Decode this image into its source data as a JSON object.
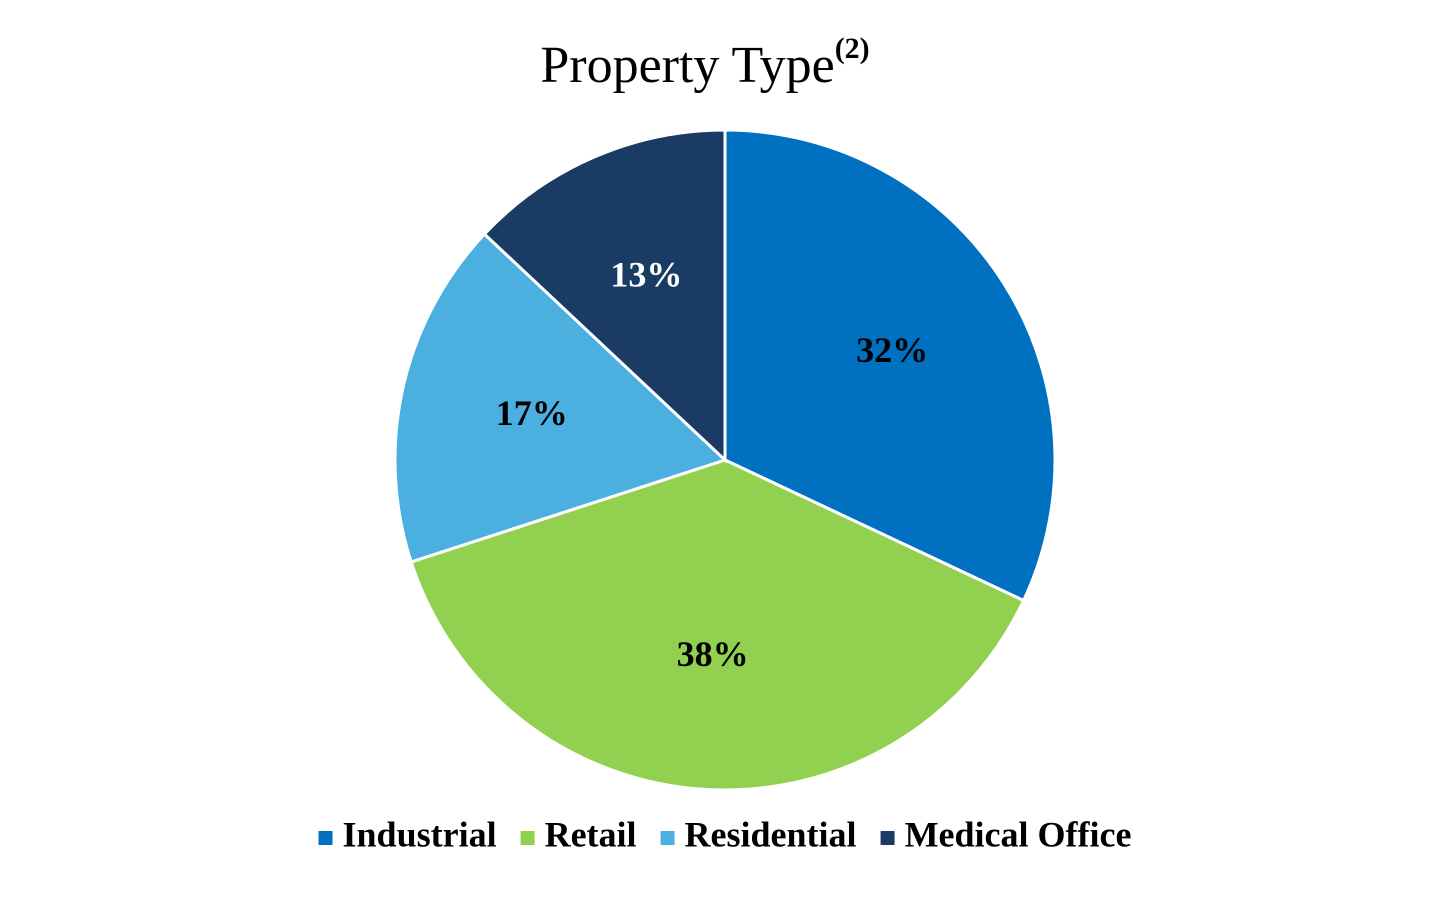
{
  "chart_data": {
    "type": "pie",
    "title": "Property Type",
    "title_superscript": "(2)",
    "categories": [
      "Industrial",
      "Retail",
      "Residential",
      "Medical Office"
    ],
    "values": [
      32,
      38,
      17,
      13
    ],
    "value_labels": [
      "32%",
      "38%",
      "17%",
      "13%"
    ],
    "colors": [
      "#0070c0",
      "#92d050",
      "#4bb0df",
      "#1a3c64"
    ],
    "label_colors": [
      "#000000",
      "#000000",
      "#000000",
      "#ffffff"
    ],
    "legend": "bottom"
  }
}
